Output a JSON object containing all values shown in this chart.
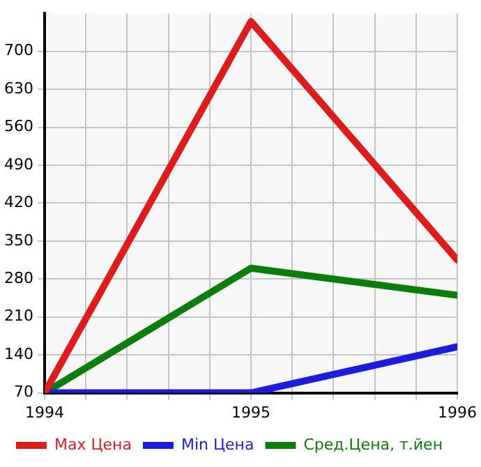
{
  "chart_data": {
    "type": "line",
    "x": [
      1994,
      1995,
      1996
    ],
    "series": [
      {
        "name": "Max Цена",
        "color": "#dd1c1c",
        "values": [
          70,
          755,
          315
        ]
      },
      {
        "name": "Min Цена",
        "color": "#1c1cdd",
        "values": [
          70,
          70,
          155
        ]
      },
      {
        "name": "Сред.Цена, т.йен",
        "color": "#0b7d0b",
        "values": [
          70,
          300,
          250
        ]
      }
    ],
    "xlim": [
      1994,
      1996
    ],
    "xticks": [
      1994,
      {
        "value": 1994.2,
        "label": null
      },
      {
        "value": 1994.4,
        "label": null
      },
      {
        "value": 1994.6,
        "label": null
      },
      {
        "value": 1994.8,
        "label": null
      },
      1995,
      {
        "value": 1995.2,
        "label": null
      },
      {
        "value": 1995.4,
        "label": null
      },
      {
        "value": 1995.6,
        "label": null
      },
      {
        "value": 1995.8,
        "label": null
      },
      1996
    ],
    "ylim": [
      70,
      770
    ],
    "yticks": [
      70,
      140,
      210,
      280,
      350,
      420,
      490,
      560,
      630,
      700
    ],
    "grid": true,
    "legend": "bottom",
    "marker": "none",
    "line_style": "solid"
  }
}
